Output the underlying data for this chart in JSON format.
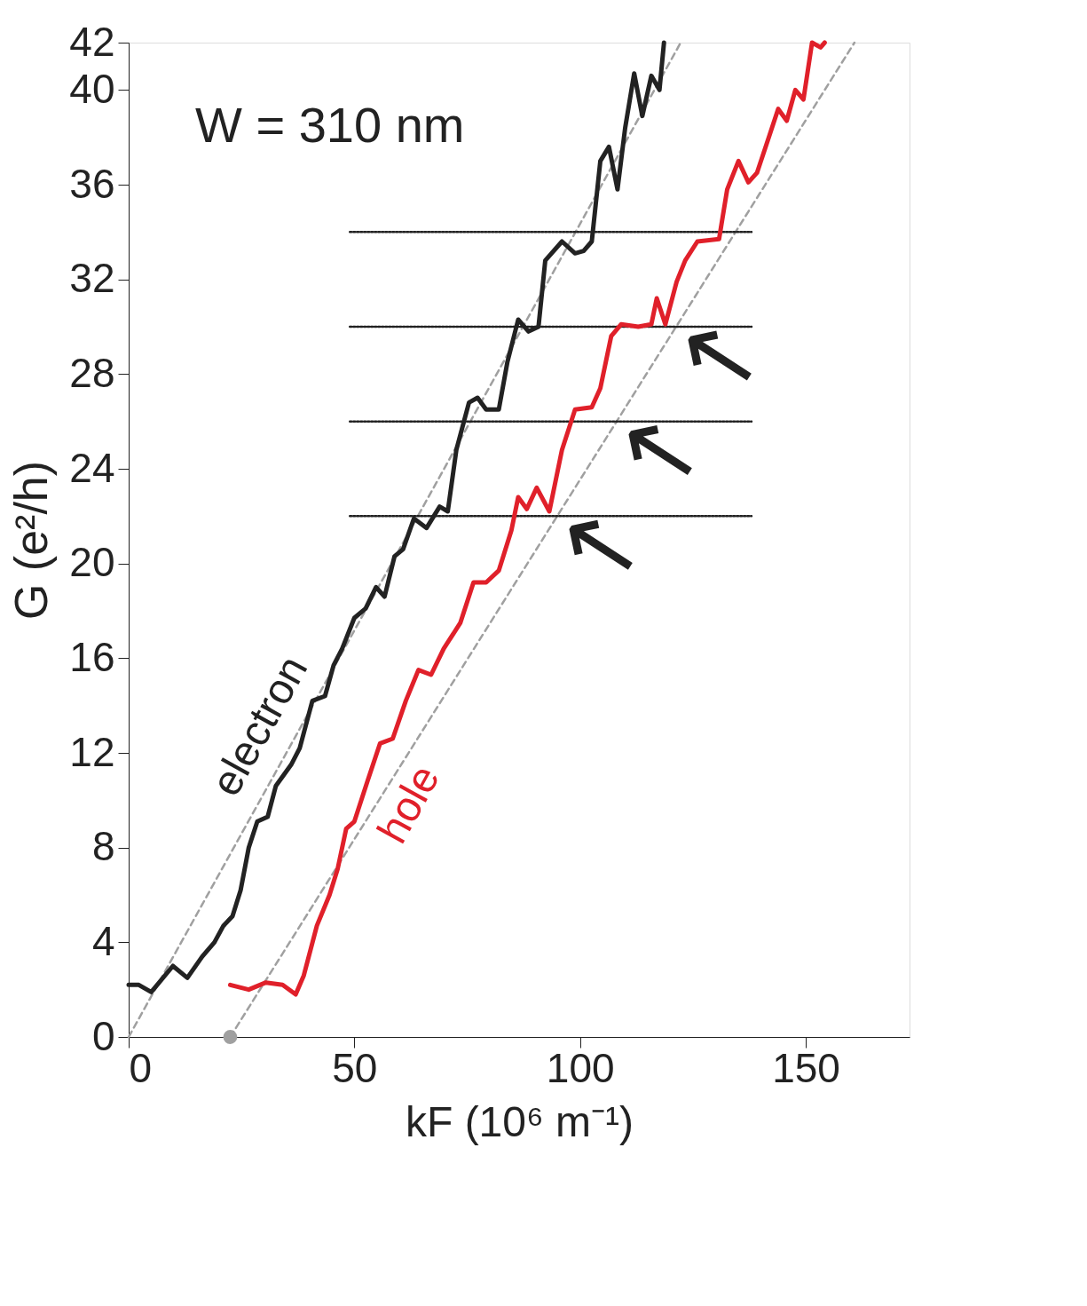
{
  "chart_data": {
    "type": "line",
    "xlabel": "kF (10⁶ m⁻¹)",
    "ylabel": "G (e²/h)",
    "xlim": [
      0,
      173
    ],
    "ylim": [
      0,
      42
    ],
    "xticks": [
      0,
      50,
      100,
      150
    ],
    "yticks": [
      0,
      4,
      8,
      12,
      16,
      20,
      24,
      28,
      32,
      36,
      40,
      42
    ],
    "grid": false,
    "marker": "none",
    "line_style": "solid",
    "series": [
      {
        "color": "#a0a0a0",
        "line_style": "dashed",
        "x": [
          0,
          122.3
        ],
        "values": [
          0,
          42
        ]
      },
      {
        "color": "#a0a0a0",
        "line_style": "dashed",
        "x": [
          22.5,
          160.8
        ],
        "values": [
          0,
          42
        ]
      },
      {
        "color": "#222222",
        "line_style": "dotted",
        "x": [
          49,
          138
        ],
        "values": [
          34,
          34
        ]
      },
      {
        "color": "#222222",
        "line_style": "dotted",
        "x": [
          49,
          138
        ],
        "values": [
          30,
          30
        ]
      },
      {
        "color": "#222222",
        "line_style": "dotted",
        "x": [
          49,
          138
        ],
        "values": [
          26,
          26
        ]
      },
      {
        "color": "#222222",
        "line_style": "dotted",
        "x": [
          49,
          138
        ],
        "values": [
          22,
          22
        ]
      },
      {
        "name": "electron",
        "color": "#222222",
        "x": [
          0,
          2.25,
          5,
          9.8,
          13,
          16.3,
          19,
          21,
          23,
          24.8,
          26.6,
          28.5,
          30.8,
          32.6,
          36,
          37.9,
          40.7,
          43.5,
          45.4,
          47.3,
          50,
          52.5,
          54.8,
          56.7,
          58.9,
          60.8,
          63.2,
          66,
          68.9,
          70.7,
          72.6,
          75.4,
          77.3,
          79.2,
          82,
          83.9,
          86.3,
          88.6,
          90.8,
          92.3,
          96,
          98.9,
          100.8,
          102.6,
          104.5,
          106.4,
          108.3,
          110,
          112,
          113.8,
          115.8,
          117.6,
          118.6
        ],
        "values": [
          2.2,
          2.2,
          1.9,
          3.0,
          2.5,
          3.4,
          4.0,
          4.7,
          5.1,
          6.2,
          8.0,
          9.1,
          9.3,
          10.6,
          11.5,
          12.2,
          14.2,
          14.4,
          15.7,
          16.4,
          17.7,
          18.1,
          19.0,
          18.6,
          20.3,
          20.6,
          21.9,
          21.5,
          22.4,
          22.2,
          24.8,
          26.8,
          27.0,
          26.5,
          26.5,
          28.5,
          30.3,
          29.8,
          30.0,
          32.8,
          33.6,
          33.1,
          33.2,
          33.6,
          37.0,
          37.6,
          35.8,
          38.4,
          40.7,
          38.9,
          40.6,
          40.0,
          42
        ]
      },
      {
        "name": "hole",
        "color": "#e0202a",
        "x": [
          22.5,
          26.6,
          30.4,
          34.1,
          37,
          38.8,
          41.7,
          44.5,
          46.3,
          48.2,
          50,
          52.9,
          55.7,
          58.5,
          61.4,
          64.2,
          67,
          69.8,
          73.5,
          76.4,
          79.2,
          82,
          84.8,
          86.3,
          88.2,
          90.4,
          93.2,
          96,
          98.9,
          102.6,
          104.5,
          106.9,
          109.1,
          112.9,
          115.8,
          117,
          118.9,
          121.4,
          123.3,
          126,
          130.8,
          132.6,
          135.1,
          137.3,
          139.2,
          142,
          143.9,
          145.8,
          147.7,
          149.5,
          151.4,
          153.3,
          154.2
        ],
        "values": [
          2.2,
          2.0,
          2.3,
          2.2,
          1.8,
          2.6,
          4.7,
          6.0,
          7.1,
          8.8,
          9.1,
          10.8,
          12.4,
          12.6,
          14.2,
          15.5,
          15.3,
          16.4,
          17.5,
          19.2,
          19.2,
          19.7,
          21.4,
          22.8,
          22.3,
          23.2,
          22.2,
          24.8,
          26.5,
          26.6,
          27.4,
          29.6,
          30.1,
          30.0,
          30.1,
          31.2,
          30.1,
          31.9,
          32.8,
          33.6,
          33.7,
          35.8,
          37.0,
          36.1,
          36.5,
          38.1,
          39.2,
          38.7,
          40.0,
          39.6,
          42.0,
          41.8,
          42
        ]
      },
      {
        "type": "scatter",
        "color": "#a0a0a0",
        "marker": "circle",
        "x": [
          22.5
        ],
        "values": [
          0
        ]
      }
    ],
    "annotations": [
      "W = 310 nm",
      "←",
      "←",
      "←"
    ]
  }
}
